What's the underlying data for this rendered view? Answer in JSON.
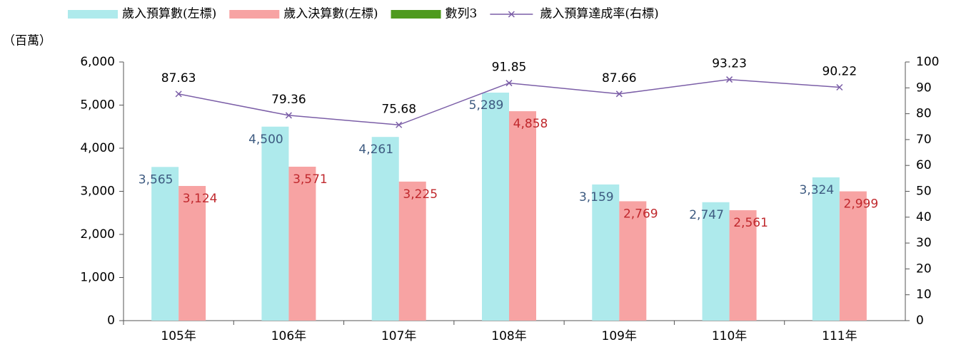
{
  "chart_data": {
    "type": "bar_line",
    "unit_label": "（百萬）",
    "categories": [
      "105年",
      "106年",
      "107年",
      "108年",
      "109年",
      "110年",
      "111年"
    ],
    "series": [
      {
        "name": "歲入預算數(左標)",
        "color": "#aeeaec",
        "values": [
          3565,
          4500,
          4261,
          5289,
          3159,
          2747,
          3324
        ],
        "value_labels": [
          "3,565",
          "4,500",
          "4,261",
          "5,289",
          "3,159",
          "2,747",
          "3,324"
        ],
        "label_color": "#3d5a80"
      },
      {
        "name": "歲入決算數(左標)",
        "color": "#f7a3a3",
        "values": [
          3124,
          3571,
          3225,
          4858,
          2769,
          2561,
          2999
        ],
        "value_labels": [
          "3,124",
          "3,571",
          "3,225",
          "4,858",
          "2,769",
          "2,561",
          "2,999"
        ],
        "label_color": "#c0282d"
      },
      {
        "name": "數列3",
        "color": "#4e9a1e",
        "values": [
          null,
          null,
          null,
          null,
          null,
          null,
          null
        ]
      },
      {
        "name": "歲入預算達成率(右標)",
        "color": "#7b5ea7",
        "axis": "y2",
        "values": [
          87.63,
          79.36,
          75.68,
          91.85,
          87.66,
          93.23,
          90.22
        ]
      }
    ],
    "ylim": [
      0,
      6000
    ],
    "yticks": [
      0,
      {
        "value": 1000,
        "label": "1,000"
      },
      {
        "value": 2000,
        "label": "2,000"
      },
      {
        "value": 3000,
        "label": "3,000"
      },
      {
        "value": 4000,
        "label": "4,000"
      },
      {
        "value": 5000,
        "label": "5,000"
      },
      {
        "value": 6000,
        "label": "6,000"
      }
    ],
    "y2lim": [
      0,
      100
    ],
    "y2ticks": [
      0,
      10,
      20,
      30,
      40,
      50,
      60,
      70,
      80,
      90,
      100
    ],
    "grid": false
  }
}
